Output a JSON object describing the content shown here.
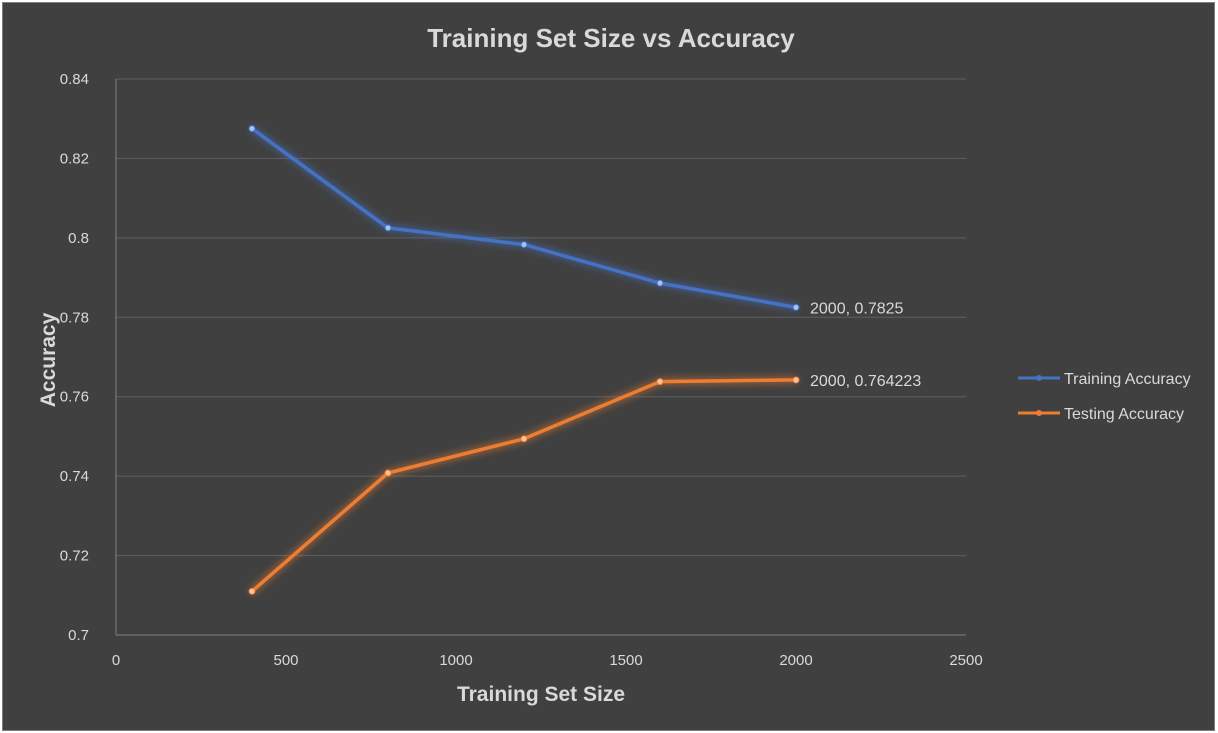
{
  "chart_data": {
    "type": "line",
    "title": "Training Set Size vs Accuracy",
    "xlabel": "Training Set Size",
    "ylabel": "Accuracy",
    "xlim": [
      0,
      2500
    ],
    "ylim": [
      0.7,
      0.84
    ],
    "x_ticks": [
      "0",
      "500",
      "1000",
      "1500",
      "2000",
      "2500"
    ],
    "y_ticks": [
      "0.7",
      "0.72",
      "0.74",
      "0.76",
      "0.78",
      "0.8",
      "0.82",
      "0.84"
    ],
    "grid": "horizontal",
    "legend_position": "right",
    "x": [
      400,
      800,
      1200,
      1600,
      2000
    ],
    "series": [
      {
        "name": "Training Accuracy",
        "color": "#4472c4",
        "values": [
          0.8275,
          0.8025,
          0.7983,
          0.7886,
          0.7825
        ],
        "end_label": "2000, 0.7825"
      },
      {
        "name": "Testing Accuracy",
        "color": "#ed7d31",
        "values": [
          0.711,
          0.7408,
          0.7494,
          0.7638,
          0.764223
        ],
        "end_label": "2000, 0.764223"
      }
    ]
  }
}
